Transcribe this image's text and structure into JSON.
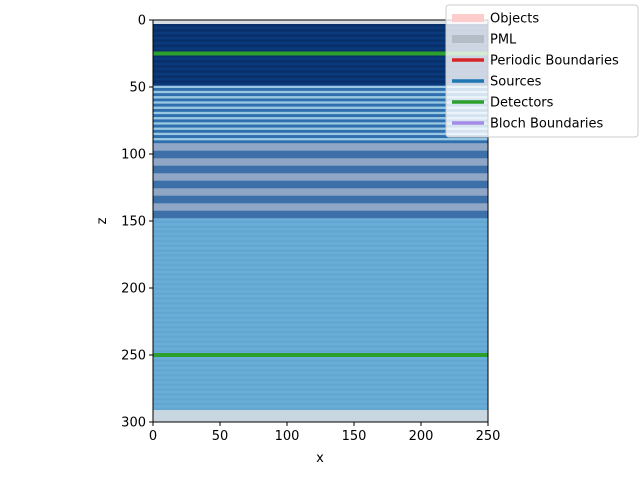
{
  "chart_data": {
    "type": "heatmap",
    "title": "",
    "xlabel": "x",
    "ylabel": "z",
    "xlim": [
      0,
      250
    ],
    "ylim": [
      300,
      0
    ],
    "y_inverted": true,
    "x_ticks": [
      0,
      50,
      100,
      150,
      200,
      250
    ],
    "y_ticks": [
      0,
      50,
      100,
      150,
      200,
      250,
      300
    ],
    "grid": false,
    "legend_placement": "top-right",
    "colormap": "Blues",
    "regions": [
      {
        "name": "pml-top",
        "z0": 0,
        "z1": 3,
        "color": "#d6dde3"
      },
      {
        "name": "dense-top-layer",
        "z0": 3,
        "z1": 49,
        "color": "#08306b"
      },
      {
        "name": "bragg-stack",
        "z0": 49,
        "z1": 92,
        "color": "#4a86bf"
      },
      {
        "name": "modulated-layer",
        "z0": 92,
        "z1": 148,
        "color": "#4d7cb0"
      },
      {
        "name": "substrate",
        "z0": 148,
        "z1": 291,
        "color": "#66aad5"
      },
      {
        "name": "pml-bottom",
        "z0": 291,
        "z1": 300,
        "color": "#c8d6e0"
      }
    ],
    "detectors": [
      {
        "z": 25,
        "x0": 0,
        "x1": 250
      },
      {
        "z": 250,
        "x0": 0,
        "x1": 250
      }
    ],
    "legend": [
      {
        "label": "Objects",
        "color": "#ffcccc",
        "style": "wide"
      },
      {
        "label": "PML",
        "color": "#b4bcc6",
        "style": "wide"
      },
      {
        "label": "Periodic Boundaries",
        "color": "#d62728",
        "style": "line"
      },
      {
        "label": "Sources",
        "color": "#1f77b4",
        "style": "line"
      },
      {
        "label": "Detectors",
        "color": "#2ca02c",
        "style": "line"
      },
      {
        "label": "Bloch Boundaries",
        "color": "#a48be8",
        "style": "line"
      }
    ]
  }
}
